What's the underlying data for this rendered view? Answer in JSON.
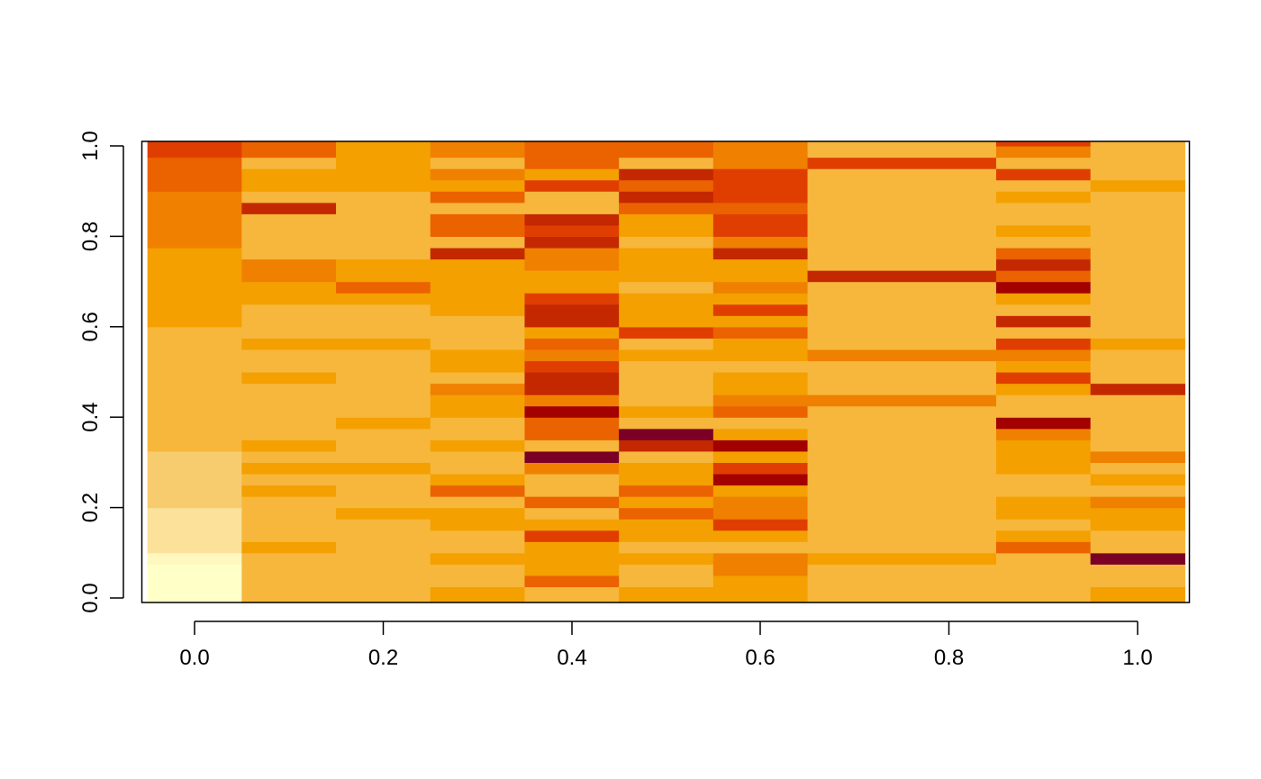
{
  "chart_data": {
    "type": "heatmap",
    "title": "",
    "xlabel": "",
    "ylabel": "",
    "xlim": [
      -0.05,
      1.05
    ],
    "ylim": [
      0,
      1
    ],
    "x_ticks": [
      "0.0",
      "0.2",
      "0.4",
      "0.6",
      "0.8",
      "1.0"
    ],
    "y_ticks": [
      "0.0",
      "0.2",
      "0.4",
      "0.6",
      "0.8",
      "1.0"
    ],
    "columns": [
      {
        "x": 0.0,
        "segments": [
          [
            0.0,
            0.075,
            "#FFFFC8"
          ],
          [
            0.075,
            0.1,
            "#FEF8BF"
          ],
          [
            0.1,
            0.2,
            "#FBE19A"
          ],
          [
            0.2,
            0.325,
            "#F7CC6E"
          ],
          [
            0.325,
            0.6,
            "#F6B73C"
          ],
          [
            0.6,
            0.775,
            "#F4A000"
          ],
          [
            0.775,
            0.9,
            "#F08000"
          ],
          [
            0.9,
            0.975,
            "#EB6200"
          ],
          [
            0.975,
            1.0,
            "#E03E00"
          ]
        ]
      },
      {
        "x": 0.1,
        "segments": [
          [
            0.0,
            0.1,
            "#F6B73C"
          ],
          [
            0.1,
            0.125,
            "#F4A000"
          ],
          [
            0.125,
            0.225,
            "#F6B73C"
          ],
          [
            0.225,
            0.25,
            "#F4A000"
          ],
          [
            0.25,
            0.275,
            "#F6B73C"
          ],
          [
            0.275,
            0.3,
            "#F4A000"
          ],
          [
            0.3,
            0.325,
            "#F6B73C"
          ],
          [
            0.325,
            0.35,
            "#F4A000"
          ],
          [
            0.35,
            0.475,
            "#F6B73C"
          ],
          [
            0.475,
            0.5,
            "#F4A000"
          ],
          [
            0.5,
            0.55,
            "#F6B73C"
          ],
          [
            0.55,
            0.575,
            "#F4A000"
          ],
          [
            0.575,
            0.65,
            "#F6B73C"
          ],
          [
            0.65,
            0.7,
            "#F4A000"
          ],
          [
            0.7,
            0.75,
            "#F08000"
          ],
          [
            0.75,
            0.85,
            "#F6B73C"
          ],
          [
            0.85,
            0.875,
            "#C42800"
          ],
          [
            0.875,
            0.9,
            "#F6B73C"
          ],
          [
            0.9,
            0.95,
            "#F4A000"
          ],
          [
            0.95,
            0.975,
            "#F6B73C"
          ],
          [
            0.975,
            1.0,
            "#EB6200"
          ]
        ]
      },
      {
        "x": 0.2,
        "segments": [
          [
            0.0,
            0.175,
            "#F6B73C"
          ],
          [
            0.175,
            0.2,
            "#F4A000"
          ],
          [
            0.2,
            0.275,
            "#F6B73C"
          ],
          [
            0.275,
            0.3,
            "#F4A000"
          ],
          [
            0.3,
            0.375,
            "#F6B73C"
          ],
          [
            0.375,
            0.4,
            "#F4A000"
          ],
          [
            0.4,
            0.55,
            "#F6B73C"
          ],
          [
            0.55,
            0.575,
            "#F4A000"
          ],
          [
            0.575,
            0.65,
            "#F6B73C"
          ],
          [
            0.65,
            0.675,
            "#F4A000"
          ],
          [
            0.675,
            0.7,
            "#EB6200"
          ],
          [
            0.7,
            0.75,
            "#F4A000"
          ],
          [
            0.75,
            0.9,
            "#F6B73C"
          ],
          [
            0.9,
            1.0,
            "#F4A000"
          ]
        ]
      },
      {
        "x": 0.3,
        "segments": [
          [
            0.0,
            0.025,
            "#F4A000"
          ],
          [
            0.025,
            0.075,
            "#F6B73C"
          ],
          [
            0.075,
            0.1,
            "#F4A000"
          ],
          [
            0.1,
            0.15,
            "#F6B73C"
          ],
          [
            0.15,
            0.2,
            "#F4A000"
          ],
          [
            0.2,
            0.225,
            "#F6B73C"
          ],
          [
            0.225,
            0.25,
            "#EB6200"
          ],
          [
            0.25,
            0.275,
            "#F4A000"
          ],
          [
            0.275,
            0.325,
            "#F6B73C"
          ],
          [
            0.325,
            0.35,
            "#F4A000"
          ],
          [
            0.35,
            0.4,
            "#F6B73C"
          ],
          [
            0.4,
            0.45,
            "#F4A000"
          ],
          [
            0.45,
            0.475,
            "#F08000"
          ],
          [
            0.475,
            0.5,
            "#F6B73C"
          ],
          [
            0.5,
            0.55,
            "#F4A000"
          ],
          [
            0.55,
            0.625,
            "#F6B73C"
          ],
          [
            0.625,
            0.75,
            "#F4A000"
          ],
          [
            0.75,
            0.775,
            "#C42800"
          ],
          [
            0.775,
            0.8,
            "#F6B73C"
          ],
          [
            0.8,
            0.85,
            "#EB6200"
          ],
          [
            0.85,
            0.875,
            "#F6B73C"
          ],
          [
            0.875,
            0.9,
            "#EB6200"
          ],
          [
            0.9,
            0.925,
            "#F4A000"
          ],
          [
            0.925,
            0.95,
            "#F08000"
          ],
          [
            0.95,
            0.975,
            "#F6B73C"
          ],
          [
            0.975,
            1.0,
            "#F08000"
          ]
        ]
      },
      {
        "x": 0.4,
        "segments": [
          [
            0.0,
            0.025,
            "#F6B73C"
          ],
          [
            0.025,
            0.05,
            "#EB6200"
          ],
          [
            0.05,
            0.125,
            "#F4A000"
          ],
          [
            0.125,
            0.15,
            "#E03E00"
          ],
          [
            0.15,
            0.175,
            "#F4A000"
          ],
          [
            0.175,
            0.2,
            "#F6B73C"
          ],
          [
            0.2,
            0.225,
            "#EB6200"
          ],
          [
            0.225,
            0.275,
            "#F6B73C"
          ],
          [
            0.275,
            0.3,
            "#F08000"
          ],
          [
            0.3,
            0.325,
            "#7A0026"
          ],
          [
            0.325,
            0.35,
            "#F6B73C"
          ],
          [
            0.35,
            0.4,
            "#EB6200"
          ],
          [
            0.4,
            0.425,
            "#A30000"
          ],
          [
            0.425,
            0.45,
            "#F08000"
          ],
          [
            0.45,
            0.5,
            "#C42800"
          ],
          [
            0.5,
            0.525,
            "#E03E00"
          ],
          [
            0.525,
            0.55,
            "#F08000"
          ],
          [
            0.55,
            0.575,
            "#EB6200"
          ],
          [
            0.575,
            0.6,
            "#F4A000"
          ],
          [
            0.6,
            0.65,
            "#C42800"
          ],
          [
            0.65,
            0.675,
            "#E03E00"
          ],
          [
            0.675,
            0.725,
            "#F4A000"
          ],
          [
            0.725,
            0.775,
            "#F08000"
          ],
          [
            0.775,
            0.8,
            "#C42800"
          ],
          [
            0.8,
            0.825,
            "#E03E00"
          ],
          [
            0.825,
            0.85,
            "#C42800"
          ],
          [
            0.85,
            0.9,
            "#F6B73C"
          ],
          [
            0.9,
            0.925,
            "#E03E00"
          ],
          [
            0.925,
            0.95,
            "#F4A000"
          ],
          [
            0.95,
            1.0,
            "#EB6200"
          ]
        ]
      },
      {
        "x": 0.5,
        "segments": [
          [
            0.0,
            0.025,
            "#F4A000"
          ],
          [
            0.025,
            0.075,
            "#F6B73C"
          ],
          [
            0.075,
            0.1,
            "#F4A000"
          ],
          [
            0.1,
            0.125,
            "#F6B73C"
          ],
          [
            0.125,
            0.175,
            "#F4A000"
          ],
          [
            0.175,
            0.2,
            "#EB6200"
          ],
          [
            0.2,
            0.225,
            "#F4A000"
          ],
          [
            0.225,
            0.25,
            "#EB6200"
          ],
          [
            0.25,
            0.3,
            "#F4A000"
          ],
          [
            0.3,
            0.325,
            "#F6B73C"
          ],
          [
            0.325,
            0.35,
            "#C42800"
          ],
          [
            0.35,
            0.375,
            "#7A0026"
          ],
          [
            0.375,
            0.4,
            "#F6B73C"
          ],
          [
            0.4,
            0.425,
            "#F4A000"
          ],
          [
            0.425,
            0.525,
            "#F6B73C"
          ],
          [
            0.525,
            0.55,
            "#F4A000"
          ],
          [
            0.55,
            0.575,
            "#F6B73C"
          ],
          [
            0.575,
            0.6,
            "#E03E00"
          ],
          [
            0.6,
            0.675,
            "#F4A000"
          ],
          [
            0.675,
            0.7,
            "#F6B73C"
          ],
          [
            0.7,
            0.775,
            "#F4A000"
          ],
          [
            0.775,
            0.8,
            "#F6B73C"
          ],
          [
            0.8,
            0.85,
            "#F4A000"
          ],
          [
            0.85,
            0.875,
            "#EB6200"
          ],
          [
            0.875,
            0.9,
            "#C42800"
          ],
          [
            0.9,
            0.925,
            "#EB6200"
          ],
          [
            0.925,
            0.95,
            "#C42800"
          ],
          [
            0.95,
            0.975,
            "#F6B73C"
          ],
          [
            0.975,
            1.0,
            "#EB6200"
          ]
        ]
      },
      {
        "x": 0.6,
        "segments": [
          [
            0.0,
            0.05,
            "#F4A000"
          ],
          [
            0.05,
            0.1,
            "#F08000"
          ],
          [
            0.1,
            0.125,
            "#F6B73C"
          ],
          [
            0.125,
            0.15,
            "#F4A000"
          ],
          [
            0.15,
            0.175,
            "#E03E00"
          ],
          [
            0.175,
            0.225,
            "#F08000"
          ],
          [
            0.225,
            0.25,
            "#F4A000"
          ],
          [
            0.25,
            0.275,
            "#A30000"
          ],
          [
            0.275,
            0.3,
            "#E03E00"
          ],
          [
            0.3,
            0.325,
            "#F4A000"
          ],
          [
            0.325,
            0.35,
            "#A30000"
          ],
          [
            0.35,
            0.375,
            "#F4A000"
          ],
          [
            0.375,
            0.4,
            "#F6B73C"
          ],
          [
            0.4,
            0.425,
            "#EB6200"
          ],
          [
            0.425,
            0.45,
            "#F08000"
          ],
          [
            0.45,
            0.5,
            "#F4A000"
          ],
          [
            0.5,
            0.525,
            "#F6B73C"
          ],
          [
            0.525,
            0.575,
            "#F4A000"
          ],
          [
            0.575,
            0.6,
            "#EB6200"
          ],
          [
            0.6,
            0.625,
            "#F4A000"
          ],
          [
            0.625,
            0.65,
            "#E03E00"
          ],
          [
            0.65,
            0.675,
            "#F4A000"
          ],
          [
            0.675,
            0.7,
            "#F08000"
          ],
          [
            0.7,
            0.75,
            "#F4A000"
          ],
          [
            0.75,
            0.775,
            "#C42800"
          ],
          [
            0.775,
            0.8,
            "#F08000"
          ],
          [
            0.8,
            0.85,
            "#E03E00"
          ],
          [
            0.85,
            0.875,
            "#EB6200"
          ],
          [
            0.875,
            0.95,
            "#E03E00"
          ],
          [
            0.95,
            1.0,
            "#F08000"
          ]
        ]
      },
      {
        "x": 0.7,
        "segments": [
          [
            0.0,
            0.075,
            "#F6B73C"
          ],
          [
            0.075,
            0.1,
            "#F4A000"
          ],
          [
            0.1,
            0.425,
            "#F6B73C"
          ],
          [
            0.425,
            0.45,
            "#F08000"
          ],
          [
            0.45,
            0.525,
            "#F6B73C"
          ],
          [
            0.525,
            0.55,
            "#F08000"
          ],
          [
            0.55,
            0.7,
            "#F6B73C"
          ],
          [
            0.7,
            0.725,
            "#C42800"
          ],
          [
            0.725,
            0.95,
            "#F6B73C"
          ],
          [
            0.95,
            0.975,
            "#E03E00"
          ],
          [
            0.975,
            1.0,
            "#F6B73C"
          ]
        ]
      },
      {
        "x": 0.9,
        "segments": [
          [
            0.0,
            0.1,
            "#F6B73C"
          ],
          [
            0.1,
            0.125,
            "#EB6200"
          ],
          [
            0.125,
            0.15,
            "#F4A000"
          ],
          [
            0.15,
            0.175,
            "#F6B73C"
          ],
          [
            0.175,
            0.225,
            "#F4A000"
          ],
          [
            0.225,
            0.275,
            "#F6B73C"
          ],
          [
            0.275,
            0.35,
            "#F4A000"
          ],
          [
            0.35,
            0.375,
            "#F08000"
          ],
          [
            0.375,
            0.4,
            "#A30000"
          ],
          [
            0.4,
            0.45,
            "#F6B73C"
          ],
          [
            0.45,
            0.475,
            "#F4A000"
          ],
          [
            0.475,
            0.5,
            "#E03E00"
          ],
          [
            0.5,
            0.525,
            "#F4A000"
          ],
          [
            0.525,
            0.55,
            "#F08000"
          ],
          [
            0.55,
            0.575,
            "#E03E00"
          ],
          [
            0.575,
            0.6,
            "#F6B73C"
          ],
          [
            0.6,
            0.625,
            "#C42800"
          ],
          [
            0.625,
            0.65,
            "#F6B73C"
          ],
          [
            0.65,
            0.675,
            "#F4A000"
          ],
          [
            0.675,
            0.7,
            "#A30000"
          ],
          [
            0.7,
            0.725,
            "#EB6200"
          ],
          [
            0.725,
            0.75,
            "#C42800"
          ],
          [
            0.75,
            0.775,
            "#EB6200"
          ],
          [
            0.775,
            0.8,
            "#F6B73C"
          ],
          [
            0.8,
            0.825,
            "#F4A000"
          ],
          [
            0.825,
            0.875,
            "#F6B73C"
          ],
          [
            0.875,
            0.9,
            "#F4A000"
          ],
          [
            0.9,
            0.925,
            "#F6B73C"
          ],
          [
            0.925,
            0.95,
            "#E03E00"
          ],
          [
            0.95,
            0.975,
            "#F6B73C"
          ],
          [
            0.975,
            1.0,
            "#F08000"
          ],
          [
            1.0,
            1.025,
            "#E03E00"
          ]
        ]
      },
      {
        "x": 1.0,
        "segments": [
          [
            0.0,
            0.025,
            "#F4A000"
          ],
          [
            0.025,
            0.075,
            "#F6B73C"
          ],
          [
            0.075,
            0.1,
            "#7A0026"
          ],
          [
            0.1,
            0.15,
            "#F6B73C"
          ],
          [
            0.15,
            0.2,
            "#F4A000"
          ],
          [
            0.2,
            0.225,
            "#F08000"
          ],
          [
            0.225,
            0.25,
            "#F6B73C"
          ],
          [
            0.25,
            0.275,
            "#F4A000"
          ],
          [
            0.275,
            0.3,
            "#F6B73C"
          ],
          [
            0.3,
            0.325,
            "#F08000"
          ],
          [
            0.325,
            0.45,
            "#F6B73C"
          ],
          [
            0.45,
            0.475,
            "#C42800"
          ],
          [
            0.475,
            0.55,
            "#F6B73C"
          ],
          [
            0.55,
            0.575,
            "#F4A000"
          ],
          [
            0.575,
            0.9,
            "#F6B73C"
          ],
          [
            0.9,
            0.925,
            "#F4A000"
          ],
          [
            0.925,
            1.0,
            "#F6B73C"
          ]
        ]
      }
    ],
    "grid": false,
    "legend": "none"
  }
}
